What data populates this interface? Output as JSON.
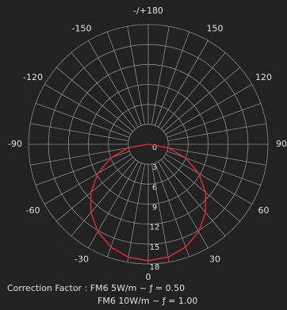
{
  "chart_data": {
    "type": "polar",
    "theta_ticks": [
      {
        "value": 180,
        "label": "-/+180"
      },
      -150,
      150,
      -120,
      120,
      -90,
      90,
      -60,
      60,
      -30,
      30,
      0
    ],
    "rlim": [
      0,
      18
    ],
    "rticks": [
      0,
      3,
      6,
      9,
      12,
      15,
      18
    ],
    "grid": true,
    "series": [
      {
        "color": "#d42a2a",
        "x": [
          -90,
          -80,
          -70,
          -60,
          -50,
          -40,
          -30,
          -20,
          -10,
          0,
          10,
          20,
          30,
          40,
          50,
          60,
          70,
          80,
          90
        ],
        "values": [
          0,
          3.04,
          5.99,
          8.75,
          11.25,
          13.41,
          15.16,
          16.44,
          17.23,
          17.5,
          17.23,
          16.44,
          15.16,
          13.41,
          11.25,
          8.75,
          5.99,
          3.04,
          0
        ]
      }
    ],
    "footer": [
      "Correction Factor : FM6 5W/m ~ ƒ = 0.50",
      "FM6 10W/m ~ ƒ = 1.00"
    ]
  }
}
